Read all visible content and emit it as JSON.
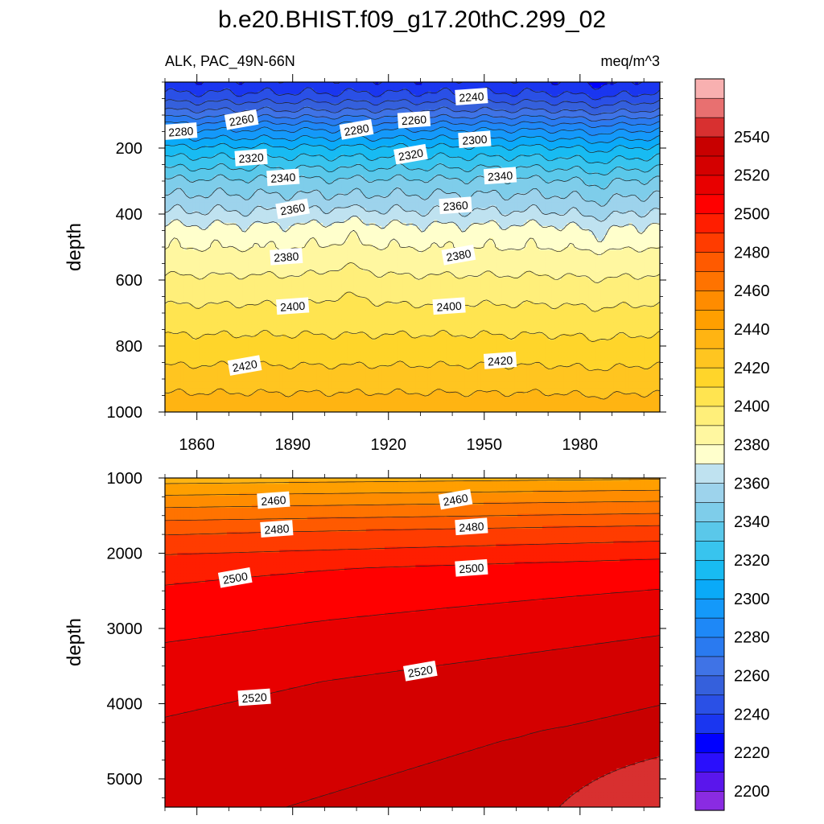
{
  "title": "b.e20.BHIST.f09_g17.20thC.299_02",
  "chart_data": {
    "type": "contour",
    "left_label": "ALK, PAC_49N-66N",
    "right_label": "meq/m^3",
    "x_ticks": [
      1860,
      1890,
      1920,
      1950,
      1980
    ],
    "xlim": [
      1850,
      2005
    ],
    "colorbar": {
      "levels": [
        2195,
        2200,
        2210,
        2220,
        2230,
        2240,
        2250,
        2260,
        2270,
        2280,
        2290,
        2300,
        2310,
        2320,
        2330,
        2340,
        2350,
        2360,
        2370,
        2380,
        2390,
        2400,
        2410,
        2420,
        2430,
        2440,
        2450,
        2460,
        2470,
        2480,
        2490,
        2500,
        2510,
        2520,
        2530,
        2540,
        2550
      ],
      "colors": [
        "#8a2be2",
        "#5a16ec",
        "#2a0ffc",
        "#0000ff",
        "#1a36f0",
        "#2a50e6",
        "#3560dc",
        "#3f73e6",
        "#2a7af0",
        "#1e88f7",
        "#1499fa",
        "#0aaaf8",
        "#18bbf2",
        "#38c4ee",
        "#5ac8ea",
        "#7ecdea",
        "#9dd3ec",
        "#bfe2f0",
        "#ffffcc",
        "#fff7a0",
        "#ffef7a",
        "#ffe450",
        "#ffd52a",
        "#ffc520",
        "#ffb412",
        "#ff9f00",
        "#ff8c00",
        "#ff7300",
        "#ff5a00",
        "#ff3c00",
        "#ff1e00",
        "#ff0000",
        "#e80000",
        "#d40000",
        "#c80000",
        "#d83030",
        "#e87070",
        "#f8b0b0"
      ],
      "tick_labels": [
        2200,
        2220,
        2240,
        2260,
        2280,
        2300,
        2320,
        2340,
        2360,
        2380,
        2400,
        2420,
        2440,
        2460,
        2480,
        2500,
        2520,
        2540
      ]
    },
    "panels": [
      {
        "ylabel": "depth",
        "ylim": [
          0,
          1000
        ],
        "y_ticks": [
          200,
          400,
          600,
          800,
          1000
        ],
        "contour_labels": [
          {
            "text": "2240",
            "x": 1946,
            "y": 45
          },
          {
            "text": "2260",
            "x": 1874,
            "y": 115
          },
          {
            "text": "2260",
            "x": 1928,
            "y": 115
          },
          {
            "text": "2280",
            "x": 1855,
            "y": 150
          },
          {
            "text": "2280",
            "x": 1910,
            "y": 145
          },
          {
            "text": "2300",
            "x": 1947,
            "y": 175
          },
          {
            "text": "2320",
            "x": 1877,
            "y": 230
          },
          {
            "text": "2320",
            "x": 1927,
            "y": 220
          },
          {
            "text": "2340",
            "x": 1887,
            "y": 290
          },
          {
            "text": "2340",
            "x": 1955,
            "y": 285
          },
          {
            "text": "2360",
            "x": 1890,
            "y": 385
          },
          {
            "text": "2360",
            "x": 1941,
            "y": 375
          },
          {
            "text": "2380",
            "x": 1888,
            "y": 530
          },
          {
            "text": "2380",
            "x": 1942,
            "y": 525
          },
          {
            "text": "2400",
            "x": 1890,
            "y": 680
          },
          {
            "text": "2400",
            "x": 1939,
            "y": 680
          },
          {
            "text": "2420",
            "x": 1875,
            "y": 860
          },
          {
            "text": "2420",
            "x": 1955,
            "y": 845
          }
        ]
      },
      {
        "ylabel": "depth",
        "ylim": [
          1000,
          5375
        ],
        "y_ticks": [
          1000,
          2000,
          3000,
          4000,
          5000
        ],
        "contour_labels": [
          {
            "text": "2460",
            "x": 1884,
            "y": 1300
          },
          {
            "text": "2460",
            "x": 1941,
            "y": 1290
          },
          {
            "text": "2480",
            "x": 1885,
            "y": 1680
          },
          {
            "text": "2480",
            "x": 1946,
            "y": 1650
          },
          {
            "text": "2500",
            "x": 1872,
            "y": 2330
          },
          {
            "text": "2500",
            "x": 1946,
            "y": 2200
          },
          {
            "text": "2520",
            "x": 1878,
            "y": 3920
          },
          {
            "text": "2520",
            "x": 1930,
            "y": 3570
          }
        ]
      }
    ]
  }
}
